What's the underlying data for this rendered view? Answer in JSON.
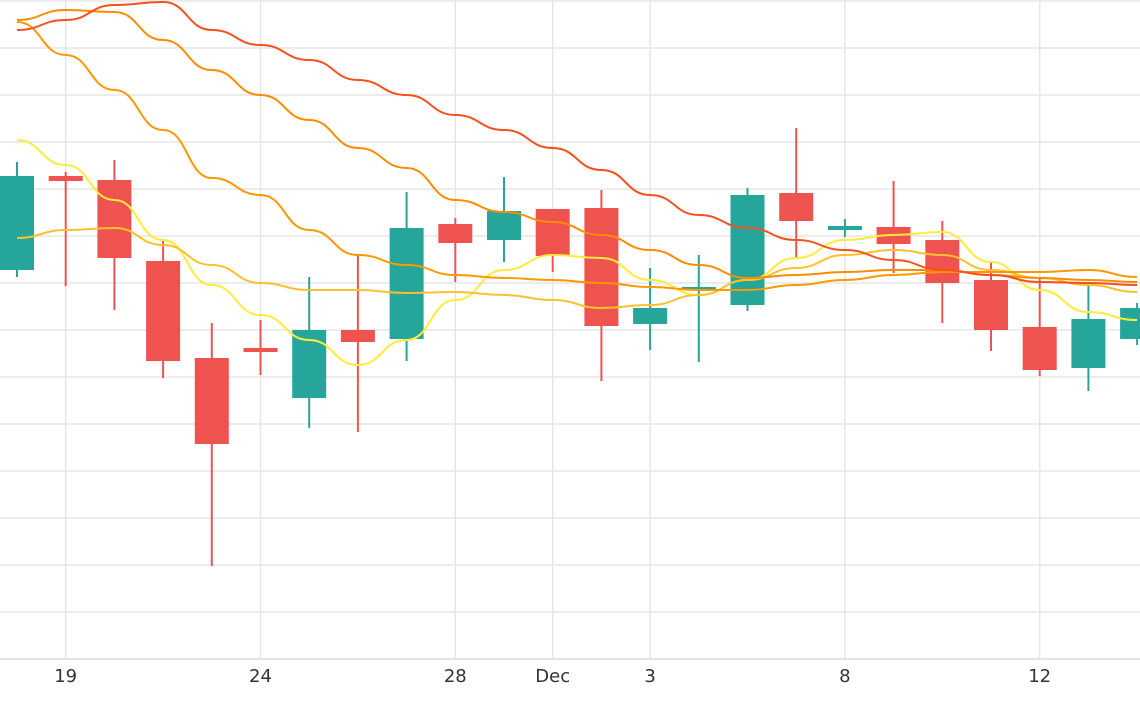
{
  "chart_data": {
    "type": "candlestick",
    "categories": [
      null,
      "19",
      null,
      null,
      null,
      "24",
      null,
      null,
      null,
      "28",
      null,
      "Dec",
      null,
      "3",
      null,
      null,
      null,
      "8",
      null,
      null,
      null,
      "12",
      null,
      null
    ],
    "open": [
      389,
      483,
      479,
      398,
      301,
      311,
      261,
      329,
      320,
      435,
      419,
      450,
      451,
      335,
      370,
      354,
      466,
      429,
      432,
      419,
      379,
      332,
      291,
      320
    ],
    "high": [
      497,
      487,
      499,
      419,
      336,
      339,
      382,
      404,
      467,
      441,
      482,
      450,
      469,
      391,
      404,
      471,
      531,
      440,
      478,
      438,
      396,
      382,
      374,
      356
    ],
    "low": [
      382,
      373,
      349,
      281,
      93,
      284,
      231,
      227,
      298,
      377,
      397,
      387,
      278,
      309,
      297,
      348,
      401,
      422,
      386,
      336,
      308,
      283,
      268,
      314
    ],
    "close": [
      483,
      478,
      401,
      298,
      215,
      307,
      329,
      317,
      431,
      416,
      448,
      403,
      333,
      351,
      372,
      464,
      438,
      433,
      415,
      376,
      329,
      289,
      340,
      351
    ],
    "up_color": "#26a69a",
    "down_color": "#ef5350",
    "lines": [
      {
        "color": "#ffeb3b",
        "values": [
          519,
          494,
          459,
          419,
          374,
          344,
          319,
          294,
          319,
          359,
          389,
          404,
          401,
          379,
          364,
          379,
          401,
          419,
          424,
          427,
          397,
          369,
          347,
          339
        ]
      },
      {
        "color": "#fbc02d",
        "values": [
          421,
          429,
          431,
          414,
          394,
          376,
          369,
          369,
          366,
          367,
          364,
          359,
          351,
          354,
          364,
          379,
          391,
          404,
          409,
          404,
          389,
          381,
          374,
          367
        ]
      },
      {
        "color": "#ff9800",
        "values": [
          637,
          604,
          569,
          529,
          481,
          464,
          429,
          404,
          394,
          384,
          381,
          379,
          376,
          372,
          369,
          369,
          374,
          379,
          384,
          387,
          387,
          387,
          389,
          382
        ]
      },
      {
        "color": "#fb8c00",
        "values": [
          639,
          649,
          647,
          619,
          589,
          564,
          539,
          511,
          491,
          459,
          447,
          437,
          424,
          409,
          394,
          381,
          384,
          387,
          389,
          389,
          384,
          381,
          379,
          377
        ]
      },
      {
        "color": "#f4511e",
        "values": [
          629,
          639,
          654,
          657,
          629,
          614,
          599,
          579,
          564,
          544,
          529,
          511,
          489,
          464,
          444,
          431,
          419,
          409,
          399,
          389,
          384,
          377,
          376,
          374
        ]
      }
    ],
    "ylim": [
      0,
      659
    ],
    "yticks": [
      0,
      47,
      94,
      141,
      188,
      235,
      282,
      329,
      376,
      423,
      470,
      517,
      564,
      611,
      658
    ],
    "grid": true
  }
}
